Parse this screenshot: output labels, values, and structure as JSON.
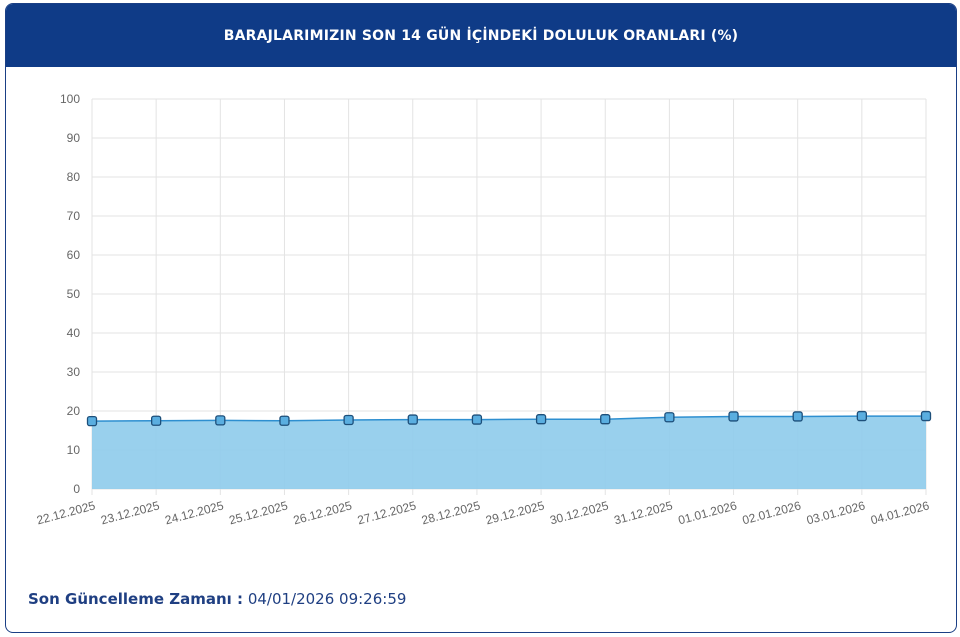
{
  "header": {
    "title": "BARAJLARIMIZIN SON 14 GÜN İÇİNDEKİ DOLULUK ORANLARI (%)"
  },
  "footer": {
    "label": "Son Güncelleme Zamanı :",
    "value": "04/01/2026 09:26:59"
  },
  "chart_data": {
    "type": "area",
    "title": "BARAJLARIMIZIN SON 14 GÜN İÇİNDEKİ DOLULUK ORANLARI (%)",
    "categories": [
      "22.12.2025",
      "23.12.2025",
      "24.12.2025",
      "25.12.2025",
      "26.12.2025",
      "27.12.2025",
      "28.12.2025",
      "29.12.2025",
      "30.12.2025",
      "31.12.2025",
      "01.01.2026",
      "02.01.2026",
      "03.01.2026",
      "04.01.2026"
    ],
    "values": [
      17.4,
      17.5,
      17.6,
      17.5,
      17.7,
      17.8,
      17.8,
      17.9,
      17.9,
      18.4,
      18.6,
      18.6,
      18.7,
      18.7
    ],
    "ylim": [
      0,
      100
    ],
    "yticks": [
      0,
      10,
      20,
      30,
      40,
      50,
      60,
      70,
      80,
      90,
      100
    ],
    "grid": true,
    "colors": {
      "fill": "#8ecbeb",
      "line": "#2e8fd0",
      "marker": "#1d4f7a",
      "header": "#0f3b87"
    }
  }
}
